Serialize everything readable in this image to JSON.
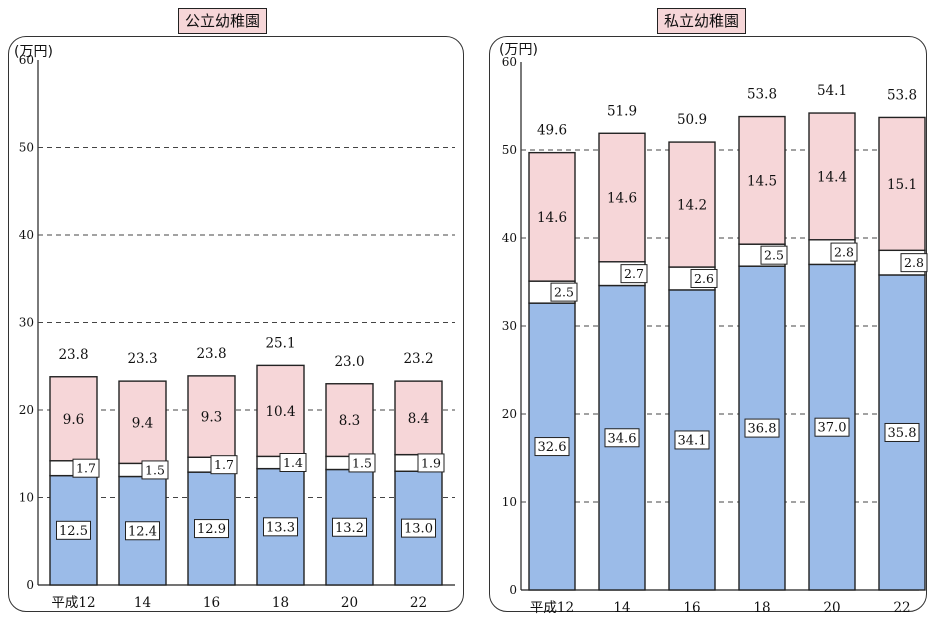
{
  "chart_data": [
    {
      "type": "bar",
      "stacked": true,
      "title": "公立幼稚園",
      "unit_label": "(万円)",
      "categories": [
        "平成12",
        "14",
        "16",
        "18",
        "20",
        "22"
      ],
      "series": [
        {
          "values": [
            12.5,
            12.4,
            12.9,
            13.3,
            13.2,
            13.0
          ],
          "color": "#9bbbe8"
        },
        {
          "values": [
            1.7,
            1.5,
            1.7,
            1.4,
            1.5,
            1.9
          ],
          "color": "#ffffff"
        },
        {
          "values": [
            9.6,
            9.4,
            9.3,
            10.4,
            8.3,
            8.4
          ],
          "color": "#f6d6d8"
        }
      ],
      "totals": [
        "23.8",
        "23.3",
        "23.8",
        "25.1",
        "23.0",
        "23.2"
      ],
      "yticks": [
        0,
        10,
        20,
        30,
        40,
        50,
        60
      ],
      "ylim": [
        0,
        60
      ],
      "grid": "dashed"
    },
    {
      "type": "bar",
      "stacked": true,
      "title": "私立幼稚園",
      "unit_label": "(万円)",
      "categories": [
        "平成12",
        "14",
        "16",
        "18",
        "20",
        "22"
      ],
      "series": [
        {
          "values": [
            32.6,
            34.6,
            34.1,
            36.8,
            37.0,
            35.8
          ],
          "color": "#9bbbe8"
        },
        {
          "values": [
            2.5,
            2.7,
            2.6,
            2.5,
            2.8,
            2.8
          ],
          "color": "#ffffff"
        },
        {
          "values": [
            14.6,
            14.6,
            14.2,
            14.5,
            14.4,
            15.1
          ],
          "color": "#f6d6d8"
        }
      ],
      "totals": [
        "49.6",
        "51.9",
        "50.9",
        "53.8",
        "54.1",
        "53.8"
      ],
      "yticks": [
        0,
        10,
        20,
        30,
        40,
        50,
        60
      ],
      "ylim": [
        0,
        60
      ],
      "grid": "dashed"
    }
  ]
}
